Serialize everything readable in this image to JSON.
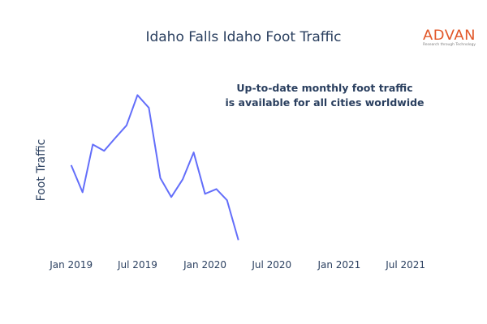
{
  "chart_data": {
    "type": "line",
    "title": "Idaho Falls Idaho Foot Traffic",
    "annotation": [
      "Up-to-date monthly foot traffic",
      "is available for all cities worldwide"
    ],
    "xlabel": "",
    "ylabel": "Foot Traffic",
    "x": [
      "2019-01",
      "2019-02",
      "2019-03",
      "2019-04",
      "2019-05",
      "2019-06",
      "2019-07",
      "2019-08",
      "2019-09",
      "2019-10",
      "2019-11",
      "2019-12",
      "2020-01",
      "2020-02",
      "2020-03",
      "2020-04"
    ],
    "xlim": [
      "2018-12-15",
      "2021-08-15"
    ],
    "x_ticks": [
      {
        "value": "2019-01",
        "label": "Jan 2019"
      },
      {
        "value": "2019-07",
        "label": "Jul 2019"
      },
      {
        "value": "2020-01",
        "label": "Jan 2020"
      },
      {
        "value": "2020-07",
        "label": "Jul 2020"
      },
      {
        "value": "2021-01",
        "label": "Jan 2021"
      },
      {
        "value": "2021-07",
        "label": "Jul 2021"
      }
    ],
    "series": [
      {
        "values": [
          59,
          42,
          72,
          68,
          76,
          84,
          103,
          95,
          51,
          39,
          50,
          67,
          41,
          44,
          37,
          12
        ],
        "color": "#636efa"
      }
    ],
    "ylim": [
      0,
      122
    ],
    "y_ticks_shown": false,
    "grid": false,
    "legend": false
  },
  "logo": {
    "name": "ADVAN",
    "tagline": "Research through Technology",
    "color": "#e2582a"
  }
}
